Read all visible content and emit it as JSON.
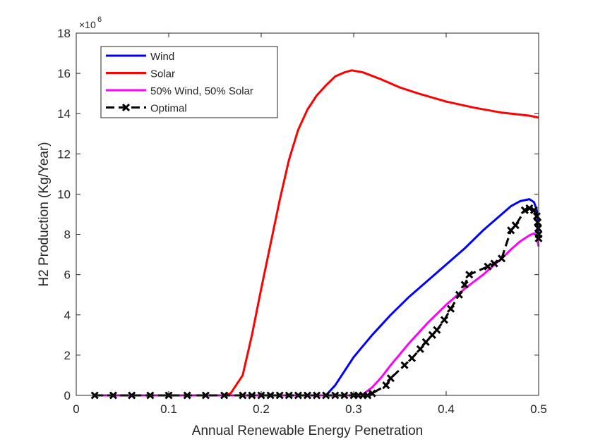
{
  "chart_data": {
    "type": "line",
    "title": "",
    "xlabel": "Annual Renewable Energy Penetration",
    "ylabel": "H2 Production (Kg/Year)",
    "y_exponent_label": "×10",
    "y_exponent_power": "6",
    "xlim": [
      0,
      0.5
    ],
    "ylim": [
      0,
      18
    ],
    "xticks": [
      0,
      0.1,
      0.2,
      0.3,
      0.4,
      0.5
    ],
    "xtick_labels": [
      "0",
      "0.1",
      "0.2",
      "0.3",
      "0.4",
      "0.5"
    ],
    "yticks": [
      0,
      2,
      4,
      6,
      8,
      10,
      12,
      14,
      16,
      18
    ],
    "ytick_labels": [
      "0",
      "2",
      "4",
      "6",
      "8",
      "10",
      "12",
      "14",
      "16",
      "18"
    ],
    "legend_position": "top-left",
    "grid": false,
    "series": [
      {
        "name": "Wind",
        "color": "#0000ff",
        "style": "solid",
        "marker": "none",
        "points": [
          [
            0.02,
            0
          ],
          [
            0.1,
            0
          ],
          [
            0.2,
            0
          ],
          [
            0.27,
            0
          ],
          [
            0.28,
            0.5
          ],
          [
            0.29,
            1.2
          ],
          [
            0.3,
            1.9
          ],
          [
            0.32,
            3.0
          ],
          [
            0.34,
            4.0
          ],
          [
            0.36,
            4.9
          ],
          [
            0.38,
            5.7
          ],
          [
            0.4,
            6.5
          ],
          [
            0.42,
            7.3
          ],
          [
            0.44,
            8.2
          ],
          [
            0.46,
            9.0
          ],
          [
            0.47,
            9.4
          ],
          [
            0.48,
            9.65
          ],
          [
            0.49,
            9.75
          ],
          [
            0.495,
            9.6
          ],
          [
            0.498,
            9.2
          ],
          [
            0.499,
            8.5
          ],
          [
            0.5,
            7.9
          ]
        ]
      },
      {
        "name": "Solar",
        "color": "#ff0000",
        "style": "solid",
        "marker": "none",
        "points": [
          [
            0.02,
            0
          ],
          [
            0.1,
            0
          ],
          [
            0.16,
            0
          ],
          [
            0.167,
            0.1
          ],
          [
            0.18,
            1.0
          ],
          [
            0.19,
            3.0
          ],
          [
            0.2,
            5.3
          ],
          [
            0.21,
            7.5
          ],
          [
            0.22,
            9.7
          ],
          [
            0.23,
            11.7
          ],
          [
            0.24,
            13.2
          ],
          [
            0.25,
            14.2
          ],
          [
            0.26,
            14.9
          ],
          [
            0.27,
            15.4
          ],
          [
            0.28,
            15.85
          ],
          [
            0.29,
            16.05
          ],
          [
            0.298,
            16.15
          ],
          [
            0.31,
            16.05
          ],
          [
            0.33,
            15.7
          ],
          [
            0.35,
            15.3
          ],
          [
            0.37,
            15.0
          ],
          [
            0.4,
            14.6
          ],
          [
            0.43,
            14.3
          ],
          [
            0.46,
            14.05
          ],
          [
            0.49,
            13.9
          ],
          [
            0.5,
            13.8
          ]
        ]
      },
      {
        "name": "50% Wind, 50% Solar",
        "color": "#ff00ff",
        "style": "solid",
        "marker": "none",
        "points": [
          [
            0.02,
            0
          ],
          [
            0.1,
            0
          ],
          [
            0.2,
            0
          ],
          [
            0.3,
            0
          ],
          [
            0.31,
            0.05
          ],
          [
            0.32,
            0.4
          ],
          [
            0.33,
            0.9
          ],
          [
            0.34,
            1.5
          ],
          [
            0.36,
            2.6
          ],
          [
            0.38,
            3.6
          ],
          [
            0.4,
            4.5
          ],
          [
            0.42,
            5.3
          ],
          [
            0.44,
            6.0
          ],
          [
            0.46,
            6.8
          ],
          [
            0.47,
            7.25
          ],
          [
            0.48,
            7.65
          ],
          [
            0.49,
            7.95
          ],
          [
            0.495,
            8.05
          ],
          [
            0.498,
            7.9
          ],
          [
            0.5,
            7.4
          ]
        ]
      },
      {
        "name": "Optimal",
        "color": "#000000",
        "style": "dashed",
        "marker": "x",
        "points": [
          [
            0.02,
            0
          ],
          [
            0.04,
            0
          ],
          [
            0.06,
            0
          ],
          [
            0.08,
            0
          ],
          [
            0.1,
            0
          ],
          [
            0.12,
            0
          ],
          [
            0.14,
            0
          ],
          [
            0.16,
            0
          ],
          [
            0.18,
            0
          ],
          [
            0.19,
            0
          ],
          [
            0.2,
            0
          ],
          [
            0.21,
            0
          ],
          [
            0.22,
            0
          ],
          [
            0.23,
            0
          ],
          [
            0.24,
            0
          ],
          [
            0.25,
            0
          ],
          [
            0.26,
            0
          ],
          [
            0.27,
            0
          ],
          [
            0.28,
            0
          ],
          [
            0.29,
            0
          ],
          [
            0.3,
            0
          ],
          [
            0.305,
            0
          ],
          [
            0.31,
            0
          ],
          [
            0.315,
            0
          ],
          [
            0.32,
            0.1
          ],
          [
            0.335,
            0.5
          ],
          [
            0.34,
            0.85
          ],
          [
            0.355,
            1.5
          ],
          [
            0.363,
            1.85
          ],
          [
            0.372,
            2.3
          ],
          [
            0.378,
            2.65
          ],
          [
            0.385,
            3.0
          ],
          [
            0.39,
            3.25
          ],
          [
            0.398,
            3.75
          ],
          [
            0.405,
            4.3
          ],
          [
            0.414,
            5.0
          ],
          [
            0.42,
            5.5
          ],
          [
            0.425,
            6.0
          ],
          [
            0.445,
            6.4
          ],
          [
            0.452,
            6.55
          ],
          [
            0.46,
            6.8
          ],
          [
            0.47,
            8.2
          ],
          [
            0.475,
            8.45
          ],
          [
            0.485,
            9.2
          ],
          [
            0.49,
            9.3
          ],
          [
            0.495,
            9.2
          ],
          [
            0.498,
            8.9
          ],
          [
            0.499,
            8.6
          ],
          [
            0.4995,
            8.3
          ],
          [
            0.5,
            8.0
          ],
          [
            0.5,
            7.8
          ]
        ]
      }
    ]
  }
}
